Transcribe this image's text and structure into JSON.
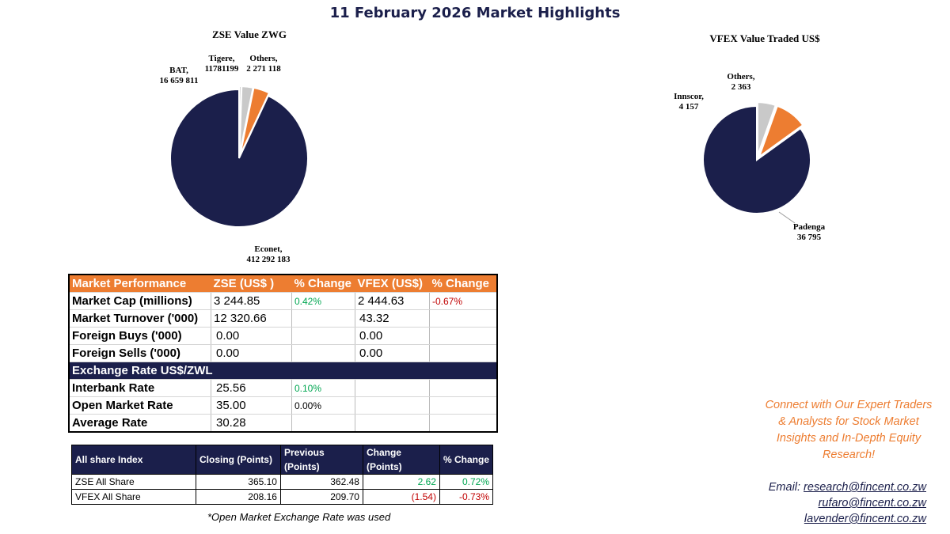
{
  "title": "11 February 2026 Market Highlights",
  "colors": {
    "navy": "#1b1f4b",
    "orange": "#ed7d31",
    "gray": "#c9c9c9",
    "green": "#00a651",
    "red": "#c00000"
  },
  "chart_data": [
    {
      "type": "pie",
      "title": "ZSE Value ZWG",
      "slices": [
        {
          "name": "Econet",
          "value": 412292183,
          "label": "Econet,",
          "value_label": "412 292 183",
          "color": "#1b1f4b"
        },
        {
          "name": "BAT",
          "value": 16659811,
          "label": "BAT,",
          "value_label": "16 659 811",
          "color": "#ed7d31"
        },
        {
          "name": "Tigere",
          "value": 11781199,
          "label": "Tigere,",
          "value_label": "11781199",
          "color": "#c9c9c9"
        },
        {
          "name": "Others",
          "value": 2271118,
          "label": "Others,",
          "value_label": "2 271 118",
          "color": "#c9c9c9"
        }
      ]
    },
    {
      "type": "pie",
      "title": "VFEX Value Traded US$",
      "slices": [
        {
          "name": "Padenga",
          "value": 36795,
          "label": "Padenga",
          "value_label": "36 795",
          "color": "#1b1f4b"
        },
        {
          "name": "Innscor",
          "value": 4157,
          "label": "Innscor,",
          "value_label": "4 157",
          "color": "#ed7d31"
        },
        {
          "name": "Others",
          "value": 2363,
          "label": "Others,",
          "value_label": "2 363",
          "color": "#c9c9c9"
        }
      ]
    }
  ],
  "performance": {
    "headers": [
      "Market Performance",
      "ZSE  (US$ )",
      "% Change",
      "VFEX (US$)",
      "% Change"
    ],
    "rows": [
      {
        "label": "Market Cap (millions)",
        "zse": "3 244.85",
        "zse_chg": "0.42%",
        "vfex": "2 444.63",
        "vfex_chg": "-0.67%"
      },
      {
        "label": "Market Turnover ('000)",
        "zse": "12 320.66",
        "zse_chg": "",
        "vfex": "43.32",
        "vfex_chg": ""
      },
      {
        "label": "Foreign Buys ('000)",
        "zse": "0.00",
        "zse_chg": "",
        "vfex": "0.00",
        "vfex_chg": ""
      },
      {
        "label": "Foreign Sells ('000)",
        "zse": "0.00",
        "zse_chg": "",
        "vfex": "0.00",
        "vfex_chg": ""
      }
    ],
    "fx_header": "Exchange Rate US$/ZWL",
    "fx_rows": [
      {
        "label": "Interbank Rate",
        "value": "25.56",
        "chg": "0.10%"
      },
      {
        "label": "Open Market Rate",
        "value": "35.00",
        "chg": "0.00%"
      },
      {
        "label": "Average Rate",
        "value": "30.28",
        "chg": ""
      }
    ]
  },
  "index_table": {
    "headers": [
      "All share Index",
      "Closing (Points)",
      "Previous (Points)",
      "Change (Points)",
      "% Change"
    ],
    "rows": [
      {
        "name": "ZSE All Share",
        "closing": "365.10",
        "previous": "362.48",
        "change": "2.62",
        "pct": "0.72%"
      },
      {
        "name": "VFEX  All Share",
        "closing": "208.16",
        "previous": "209.70",
        "change": "(1.54)",
        "pct": "-0.73%"
      }
    ]
  },
  "footnote": "*Open Market  Exchange Rate was used",
  "promo": {
    "line1": "Connect with Our Expert Traders",
    "line2": "& Analysts for Stock Market",
    "line3": "Insights and In-Depth Equity",
    "line4": "Research!"
  },
  "contact": {
    "lead": "Email:",
    "emails": [
      "research@fincent.co.zw",
      "rufaro@fincent.co.zw",
      "lavender@fincent.co.zw"
    ]
  }
}
